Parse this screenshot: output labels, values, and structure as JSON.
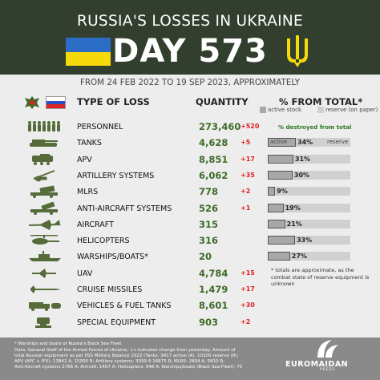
{
  "header": {
    "title": "RUSSIA'S LOSSES IN UKRAINE",
    "day_label": "DAY 573",
    "subtitle": "FROM 24 FEB 2022 TO 19 SEP 2023, APPROXIMATELY"
  },
  "columns": {
    "type": "TYPE OF LOSS",
    "quantity": "QUANTITY",
    "percent": "% FROM TOTAL*"
  },
  "legend": {
    "active": "active stock",
    "reserve": "reserve (on paper)",
    "destroyed": "% destroyed from total",
    "bar_active": "active",
    "bar_reserve": "reserve"
  },
  "colors": {
    "header_bg": "#333f2e",
    "quantity": "#3d6b27",
    "change": "#dd2222",
    "bar_fill": "#a8a8a8",
    "bar_bg": "#d0d0d0",
    "ukraine_blue": "#2b6cc4",
    "ukraine_yellow": "#f5d90a"
  },
  "chart_data": {
    "type": "table",
    "rows": [
      {
        "label": "PERSONNEL",
        "quantity": "273,460",
        "change": "+520",
        "percent": null,
        "icon": "soldiers-icon"
      },
      {
        "label": "TANKS",
        "quantity": "4,628",
        "change": "+5",
        "percent": 34,
        "icon": "tank-icon"
      },
      {
        "label": "APV",
        "quantity": "8,851",
        "change": "+17",
        "percent": 31,
        "icon": "apv-icon"
      },
      {
        "label": "ARTILLERY SYSTEMS",
        "quantity": "6,062",
        "change": "+35",
        "percent": 30,
        "icon": "artillery-icon"
      },
      {
        "label": "MLRS",
        "quantity": "778",
        "change": "+2",
        "percent": 9,
        "icon": "mlrs-icon"
      },
      {
        "label": "ANTI-AIRCRAFT SYSTEMS",
        "quantity": "526",
        "change": "+1",
        "percent": 19,
        "icon": "anti-aircraft-icon"
      },
      {
        "label": "AIRCRAFT",
        "quantity": "315",
        "change": "",
        "percent": 21,
        "icon": "aircraft-icon"
      },
      {
        "label": "HELICOPTERS",
        "quantity": "316",
        "change": "",
        "percent": 33,
        "icon": "helicopter-icon"
      },
      {
        "label": "WARSHIPS/BOATS*",
        "quantity": "20",
        "change": "",
        "percent": 27,
        "icon": "warship-icon"
      },
      {
        "label": "UAV",
        "quantity": "4,784",
        "change": "+15",
        "percent": null,
        "icon": "uav-icon"
      },
      {
        "label": "CRUISE MISSILES",
        "quantity": "1,479",
        "change": "+17",
        "percent": null,
        "icon": "missile-icon"
      },
      {
        "label": "VEHICLES & FUEL TANKS",
        "quantity": "8,601",
        "change": "+30",
        "percent": null,
        "icon": "truck-icon"
      },
      {
        "label": "SPECIAL EQUIPMENT",
        "quantity": "903",
        "change": "+2",
        "percent": null,
        "icon": "special-equipment-icon"
      }
    ]
  },
  "note": "* totals are approximate, as the combat state of reserve equipment is unknown",
  "footer": {
    "lines": [
      "* Warships and boats of Russia's Black Sea Fleet",
      "Data: General Staff of the Armed Forces of Ukraine; +n indicates change from yesterday. Amount of",
      "total Russian equipment as per IISS Military Balance 2022 (Tanks: 3417 active (A), 10200 reserve (R);",
      "APV (APC + IFV): 13842 A, 15000 R; Artillery systems: 3399 A 16675 R; MLRS: 2804 A, 5810 R;",
      "Anti-Aircraft systems 2766 A; Aircraft: 1467 A; Helicopters: 948 A; Warships/boats (Black Sea Fleet): 75"
    ],
    "brand": "EUROMAIDAN",
    "brand_sub": "PRESS"
  }
}
